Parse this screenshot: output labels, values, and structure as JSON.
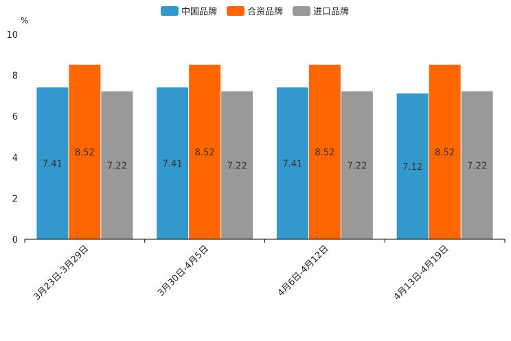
{
  "chart_data": {
    "type": "bar",
    "title": "",
    "xlabel": "",
    "ylabel": "%",
    "ylim": [
      0,
      10
    ],
    "yticks": [
      0,
      2,
      4,
      6,
      8,
      10
    ],
    "legend_position": "top-center",
    "grid": false,
    "categories": [
      "3月23日-3月29日",
      "3月30日-4月5日",
      "4月6日-4月12日",
      "4月13日-4月19日"
    ],
    "series": [
      {
        "name": "中国品牌",
        "color": "#3399cc",
        "values": [
          7.41,
          7.41,
          7.41,
          7.12
        ]
      },
      {
        "name": "合资品牌",
        "color": "#ff6600",
        "values": [
          8.52,
          8.52,
          8.52,
          8.52
        ]
      },
      {
        "name": "进口品牌",
        "color": "#999999",
        "values": [
          7.22,
          7.22,
          7.22,
          7.22
        ]
      }
    ]
  }
}
